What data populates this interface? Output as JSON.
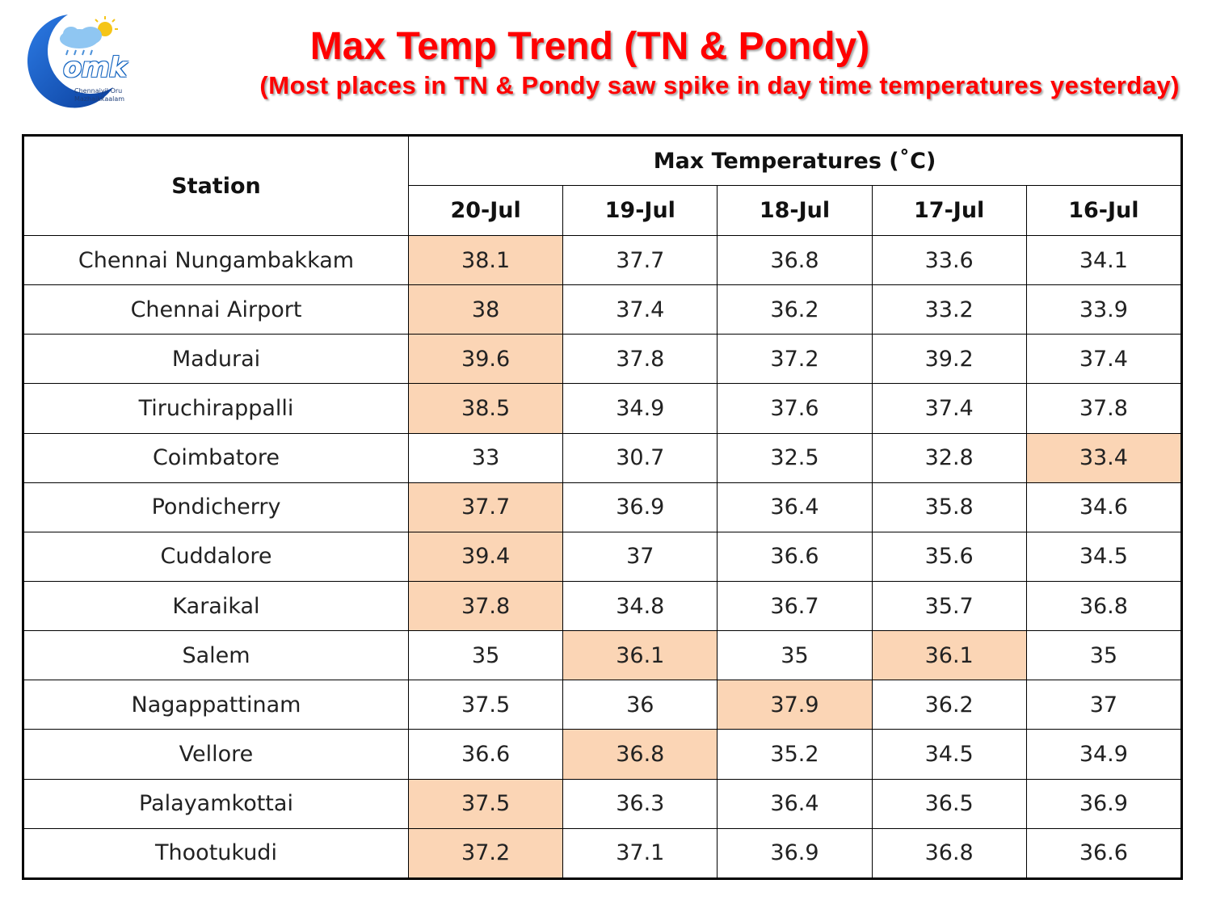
{
  "logo": {
    "text": "omk",
    "line1": "Chennaiyil Oru",
    "line2": "Mazhaikkaalam"
  },
  "title": "Max Temp Trend (TN & Pondy)",
  "subtitle": "(Most places in TN & Pondy saw spike in day time temperatures yesterday)",
  "chart_data": {
    "type": "table",
    "station_header": "Station",
    "group_header": "Max Temperatures (˚C)",
    "columns": [
      "20-Jul",
      "19-Jul",
      "18-Jul",
      "17-Jul",
      "16-Jul"
    ],
    "highlight_color": "#fbd5b5",
    "rows": [
      {
        "station": "Chennai Nungambakkam",
        "values": [
          "38.1",
          "37.7",
          "36.8",
          "33.6",
          "34.1"
        ],
        "highlight": [
          0
        ]
      },
      {
        "station": "Chennai Airport",
        "values": [
          "38",
          "37.4",
          "36.2",
          "33.2",
          "33.9"
        ],
        "highlight": [
          0
        ]
      },
      {
        "station": "Madurai",
        "values": [
          "39.6",
          "37.8",
          "37.2",
          "39.2",
          "37.4"
        ],
        "highlight": [
          0
        ]
      },
      {
        "station": "Tiruchirappalli",
        "values": [
          "38.5",
          "34.9",
          "37.6",
          "37.4",
          "37.8"
        ],
        "highlight": [
          0
        ]
      },
      {
        "station": "Coimbatore",
        "values": [
          "33",
          "30.7",
          "32.5",
          "32.8",
          "33.4"
        ],
        "highlight": [
          4
        ]
      },
      {
        "station": "Pondicherry",
        "values": [
          "37.7",
          "36.9",
          "36.4",
          "35.8",
          "34.6"
        ],
        "highlight": [
          0
        ]
      },
      {
        "station": "Cuddalore",
        "values": [
          "39.4",
          "37",
          "36.6",
          "35.6",
          "34.5"
        ],
        "highlight": [
          0
        ]
      },
      {
        "station": "Karaikal",
        "values": [
          "37.8",
          "34.8",
          "36.7",
          "35.7",
          "36.8"
        ],
        "highlight": [
          0
        ]
      },
      {
        "station": "Salem",
        "values": [
          "35",
          "36.1",
          "35",
          "36.1",
          "35"
        ],
        "highlight": [
          1,
          3
        ]
      },
      {
        "station": "Nagappattinam",
        "values": [
          "37.5",
          "36",
          "37.9",
          "36.2",
          "37"
        ],
        "highlight": [
          2
        ]
      },
      {
        "station": "Vellore",
        "values": [
          "36.6",
          "36.8",
          "35.2",
          "34.5",
          "34.9"
        ],
        "highlight": [
          1
        ]
      },
      {
        "station": "Palayamkottai",
        "values": [
          "37.5",
          "36.3",
          "36.4",
          "36.5",
          "36.9"
        ],
        "highlight": [
          0
        ]
      },
      {
        "station": "Thootukudi",
        "values": [
          "37.2",
          "37.1",
          "36.9",
          "36.8",
          "36.6"
        ],
        "highlight": [
          0
        ]
      }
    ]
  }
}
